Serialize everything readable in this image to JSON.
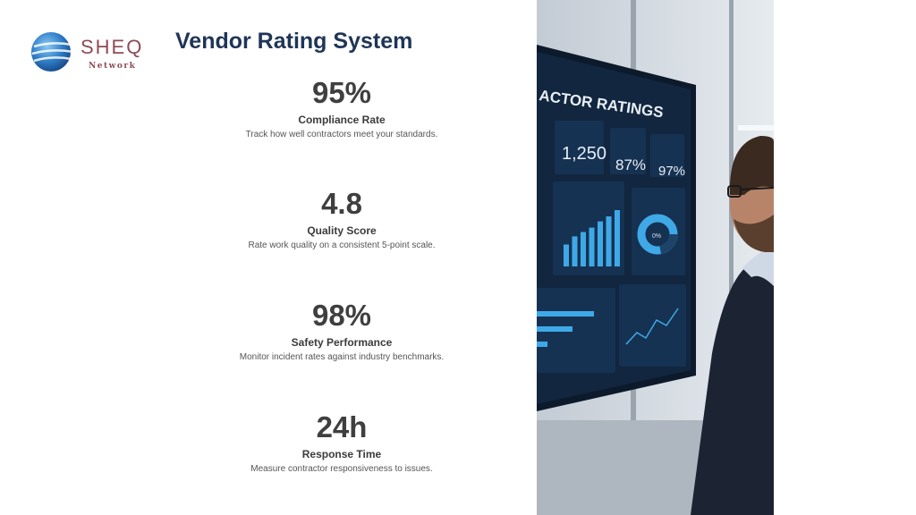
{
  "logo": {
    "word": "SHEQ",
    "sub": "Network",
    "brand_color": "#8e4b55",
    "globe_color": "#2f7fc9"
  },
  "title": "Vendor Rating System",
  "stats": [
    {
      "value": "95%",
      "label": "Compliance Rate",
      "desc": "Track how well contractors meet your standards."
    },
    {
      "value": "4.8",
      "label": "Quality Score",
      "desc": "Rate work quality on a consistent 5-point scale."
    },
    {
      "value": "98%",
      "label": "Safety Performance",
      "desc": "Monitor incident rates against industry benchmarks."
    },
    {
      "value": "24h",
      "label": "Response Time",
      "desc": "Measure contractor responsiveness to issues."
    }
  ],
  "photo": {
    "screen_title": "ACTOR RATINGS",
    "kpis": [
      "1,250",
      "87%",
      "97%"
    ],
    "donut_label": "0%",
    "bars": [
      0.35,
      0.48,
      0.55,
      0.62,
      0.72,
      0.8,
      0.9
    ],
    "colors": {
      "screen": "#12263f",
      "panel": "#163252",
      "accent": "#3fa9e8",
      "suit": "#1c2433"
    }
  }
}
